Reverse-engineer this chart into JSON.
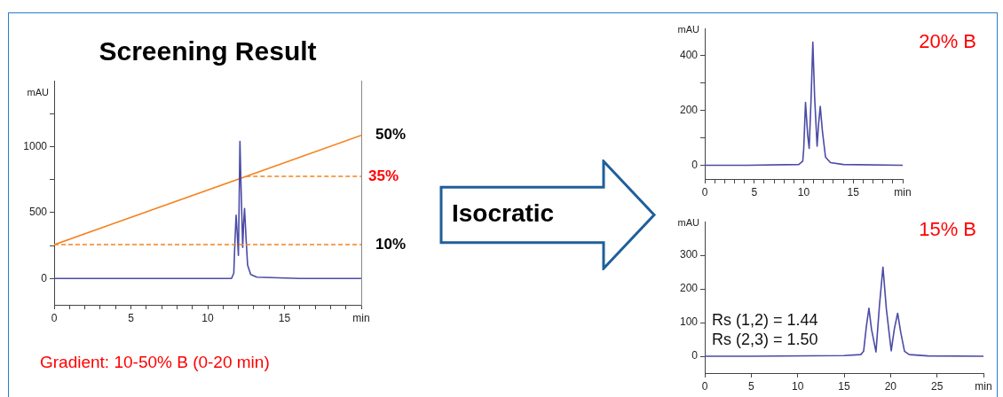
{
  "chart_data": [
    {
      "type": "line",
      "title": "Screening Result",
      "ylabel": "mAU",
      "annotations": [
        "Gradient: 10-50% B (0-20 min)"
      ],
      "marker": "none",
      "grid": false,
      "xlim": [
        0,
        20
      ],
      "xticks": [
        0,
        {
          "value": 1,
          "label": null
        },
        {
          "value": 2,
          "label": null
        },
        {
          "value": 3,
          "label": null
        },
        {
          "value": 4,
          "label": null
        },
        5,
        {
          "value": 6,
          "label": null
        },
        {
          "value": 7,
          "label": null
        },
        {
          "value": 8,
          "label": null
        },
        {
          "value": 9,
          "label": null
        },
        10,
        {
          "value": 11,
          "label": null
        },
        {
          "value": 12,
          "label": null
        },
        {
          "value": 13,
          "label": null
        },
        {
          "value": 14,
          "label": null
        },
        15,
        {
          "value": 16,
          "label": null
        },
        {
          "value": 17,
          "label": null
        },
        {
          "value": 18,
          "label": null
        },
        {
          "value": 19,
          "label": null
        },
        {
          "value": 20,
          "label": "min"
        }
      ],
      "ylim": [
        -200,
        1500
      ],
      "yticks": [
        0,
        {
          "value": 250,
          "label": null
        },
        500,
        {
          "value": 750,
          "label": null
        },
        1000,
        {
          "value": 1250,
          "label": null
        }
      ],
      "y2lim": [
        -12,
        70
      ],
      "y2ticks": [
        {
          "value": 10,
          "label": "10%"
        },
        {
          "value": 50,
          "label": "50%"
        }
      ],
      "ref_lines": [
        {
          "axis": "y2",
          "value": 10,
          "color": "#f5821f",
          "line_style": "dashed"
        },
        {
          "axis": "y2",
          "value": 35,
          "label": "35%",
          "color": "#f5821f",
          "line_style": "dashed"
        }
      ],
      "series": [
        {
          "color": "#4b4ba6",
          "x": [
            0,
            6,
            11.55,
            11.7,
            11.78,
            11.85,
            11.93,
            12.0,
            12.05,
            12.1,
            12.17,
            12.28,
            12.34,
            12.4,
            12.5,
            12.6,
            12.8,
            13.2,
            16,
            20
          ],
          "values": [
            0,
            0,
            0,
            40,
            300,
            480,
            330,
            175,
            600,
            1040,
            700,
            235,
            420,
            530,
            300,
            100,
            30,
            10,
            0,
            0
          ]
        },
        {
          "color": "#f5821f",
          "axis": "y2",
          "x": [
            0,
            20
          ],
          "values": [
            10,
            50
          ]
        }
      ]
    },
    {
      "type": "other",
      "annotations": [
        "Isocratic"
      ]
    },
    {
      "type": "line",
      "title": "20% B",
      "ylabel": "mAU",
      "marker": "none",
      "grid": false,
      "xlim": [
        0,
        20
      ],
      "xticks": [
        0,
        {
          "value": 1,
          "label": null
        },
        {
          "value": 2,
          "label": null
        },
        {
          "value": 3,
          "label": null
        },
        {
          "value": 4,
          "label": null
        },
        5,
        {
          "value": 6,
          "label": null
        },
        {
          "value": 7,
          "label": null
        },
        {
          "value": 8,
          "label": null
        },
        {
          "value": 9,
          "label": null
        },
        10,
        {
          "value": 11,
          "label": null
        },
        {
          "value": 12,
          "label": null
        },
        {
          "value": 13,
          "label": null
        },
        {
          "value": 14,
          "label": null
        },
        15,
        {
          "value": 16,
          "label": null
        },
        {
          "value": 17,
          "label": null
        },
        {
          "value": 18,
          "label": null
        },
        {
          "value": 19,
          "label": null
        },
        {
          "value": 20,
          "label": "min"
        }
      ],
      "ylim": [
        -50,
        500
      ],
      "yticks": [
        0,
        {
          "value": 100,
          "label": null
        },
        200,
        {
          "value": 300,
          "label": null
        },
        400
      ],
      "series": [
        {
          "color": "#4b4ba6",
          "x": [
            0,
            4.3,
            9.5,
            9.9,
            10.0,
            10.18,
            10.4,
            10.55,
            10.75,
            10.92,
            11.1,
            11.35,
            11.5,
            11.67,
            11.9,
            12.2,
            12.7,
            14,
            20
          ],
          "values": [
            0,
            0,
            3,
            15,
            60,
            230,
            110,
            62,
            250,
            450,
            250,
            70,
            150,
            215,
            120,
            30,
            10,
            3,
            0
          ]
        }
      ]
    },
    {
      "type": "line",
      "title": "15% B",
      "ylabel": "mAU",
      "annotations": [
        "Rs (1,2) = 1.44",
        "Rs (2,3) = 1.50"
      ],
      "marker": "none",
      "grid": false,
      "xlim": [
        0,
        30
      ],
      "xticks": [
        0,
        5,
        10,
        15,
        20,
        25,
        {
          "value": 30,
          "label": "min"
        }
      ],
      "ylim": [
        -50,
        400
      ],
      "yticks": [
        0,
        100,
        200,
        300
      ],
      "series": [
        {
          "color": "#4b4ba6",
          "x": [
            0,
            5,
            15,
            16.8,
            17.1,
            17.4,
            17.67,
            17.95,
            18.43,
            18.8,
            19.18,
            19.55,
            20.07,
            20.4,
            20.76,
            21.1,
            21.5,
            22,
            24,
            30
          ],
          "values": [
            0,
            0,
            2,
            5,
            15,
            90,
            143,
            80,
            13,
            150,
            265,
            140,
            16,
            80,
            128,
            70,
            15,
            5,
            1,
            0
          ]
        }
      ]
    }
  ]
}
